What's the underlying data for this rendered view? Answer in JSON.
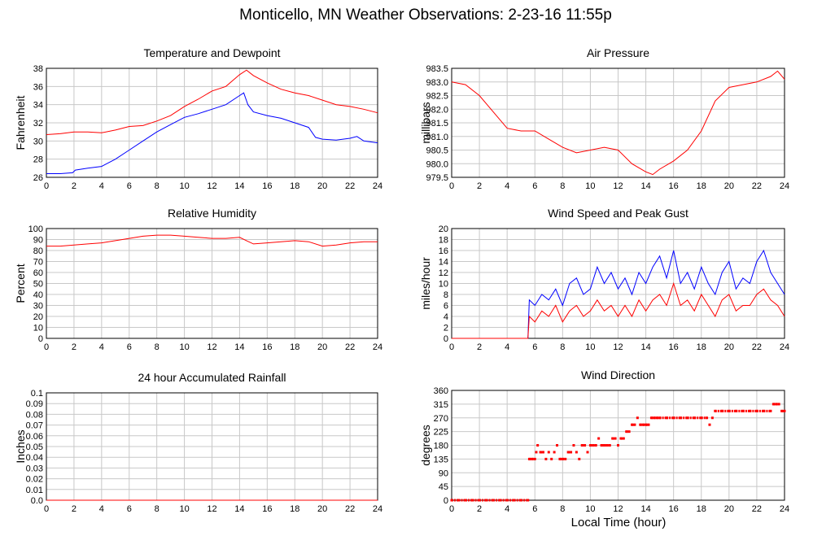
{
  "page": {
    "title": "Monticello, MN Weather Observations: 2-23-16 11:55p",
    "xaxis_label": "Local Time (hour)"
  },
  "colors": {
    "red": "#ff0000",
    "blue": "#0000ff",
    "grid": "#c8c8c8"
  },
  "chart_data": [
    {
      "id": "temp",
      "type": "line",
      "title": "Temperature and Dewpoint",
      "ylabel": "Fahrenheit",
      "xlim": [
        0,
        24
      ],
      "ylim": [
        26,
        38
      ],
      "yticks": [
        26,
        28,
        30,
        32,
        34,
        36,
        38
      ],
      "xticks": [
        0,
        2,
        4,
        6,
        8,
        10,
        12,
        14,
        16,
        18,
        20,
        22,
        24
      ],
      "grid": true,
      "series": [
        {
          "color": "#ff0000",
          "x": [
            0,
            1,
            2,
            3,
            4,
            5,
            6,
            7,
            8,
            9,
            10,
            11,
            12,
            13,
            14,
            14.5,
            15,
            16,
            17,
            18,
            19,
            20,
            21,
            22,
            23,
            24
          ],
          "y": [
            30.7,
            30.8,
            31.0,
            31.0,
            30.9,
            31.2,
            31.6,
            31.7,
            32.2,
            32.8,
            33.8,
            34.6,
            35.5,
            36.0,
            37.3,
            37.8,
            37.2,
            36.4,
            35.7,
            35.3,
            35.0,
            34.5,
            34.0,
            33.8,
            33.5,
            33.1
          ]
        },
        {
          "color": "#0000ff",
          "x": [
            0,
            1,
            1.9,
            2.1,
            3,
            4,
            5,
            6,
            7,
            8,
            9,
            10,
            11,
            12,
            13,
            14,
            14.3,
            14.6,
            15,
            16,
            17,
            18,
            19,
            19.5,
            20,
            21,
            22,
            22.5,
            23,
            24
          ],
          "y": [
            26.4,
            26.4,
            26.5,
            26.8,
            27.0,
            27.2,
            28.0,
            29.0,
            30.0,
            31.0,
            31.8,
            32.6,
            33.0,
            33.5,
            34.0,
            35.0,
            35.3,
            34.0,
            33.2,
            32.8,
            32.5,
            32.0,
            31.5,
            30.4,
            30.2,
            30.1,
            30.3,
            30.5,
            30.0,
            29.8
          ]
        }
      ]
    },
    {
      "id": "pressure",
      "type": "line",
      "title": "Air Pressure",
      "ylabel": "millibars",
      "xlim": [
        0,
        24
      ],
      "ylim": [
        979.5,
        983.5
      ],
      "yticks": [
        979.5,
        980.0,
        980.5,
        981.0,
        981.5,
        982.0,
        982.5,
        983.0,
        983.5
      ],
      "ytick_labels": [
        "979.5",
        "980.0",
        "980.5",
        "981.0",
        "981.5",
        "982.0",
        "982.5",
        "983.0",
        "983.5"
      ],
      "xticks": [
        0,
        2,
        4,
        6,
        8,
        10,
        12,
        14,
        16,
        18,
        20,
        22,
        24
      ],
      "grid": true,
      "series": [
        {
          "color": "#ff0000",
          "x": [
            0,
            1,
            2,
            3,
            4,
            5,
            6,
            7,
            8,
            9,
            10,
            11,
            12,
            13,
            14,
            14.5,
            15,
            16,
            17,
            18,
            19,
            20,
            21,
            22,
            23,
            23.5,
            24
          ],
          "y": [
            983.0,
            982.9,
            982.5,
            981.9,
            981.3,
            981.2,
            981.2,
            980.9,
            980.6,
            980.4,
            980.5,
            980.6,
            980.5,
            980.0,
            979.7,
            979.6,
            979.8,
            980.1,
            980.5,
            981.2,
            982.3,
            982.8,
            982.9,
            983.0,
            983.2,
            983.4,
            983.1
          ]
        }
      ]
    },
    {
      "id": "rh",
      "type": "line",
      "title": "Relative Humidity",
      "ylabel": "Percent",
      "xlim": [
        0,
        24
      ],
      "ylim": [
        0,
        100
      ],
      "yticks": [
        0,
        10,
        20,
        30,
        40,
        50,
        60,
        70,
        80,
        90,
        100
      ],
      "xticks": [
        0,
        2,
        4,
        6,
        8,
        10,
        12,
        14,
        16,
        18,
        20,
        22,
        24
      ],
      "grid": true,
      "series": [
        {
          "color": "#ff0000",
          "x": [
            0,
            1,
            2,
            3,
            4,
            5,
            6,
            7,
            8,
            9,
            10,
            11,
            12,
            13,
            14,
            14.5,
            15,
            16,
            17,
            18,
            19,
            20,
            21,
            22,
            23,
            24
          ],
          "y": [
            84,
            84,
            85,
            86,
            87,
            89,
            91,
            93,
            94,
            94,
            93,
            92,
            91,
            91,
            92,
            89,
            86,
            87,
            88,
            89,
            88,
            84,
            85,
            87,
            88,
            88
          ]
        }
      ]
    },
    {
      "id": "wind",
      "type": "line",
      "title": "Wind Speed and Peak Gust",
      "ylabel": "miles/hour",
      "xlim": [
        0,
        24
      ],
      "ylim": [
        0,
        20
      ],
      "yticks": [
        0,
        2,
        4,
        6,
        8,
        10,
        12,
        14,
        16,
        18,
        20
      ],
      "xticks": [
        0,
        2,
        4,
        6,
        8,
        10,
        12,
        14,
        16,
        18,
        20,
        22,
        24
      ],
      "grid": true,
      "series": [
        {
          "color": "#0000ff",
          "x": [
            0,
            5.5,
            5.6,
            6,
            6.5,
            7,
            7.5,
            8,
            8.5,
            9,
            9.5,
            10,
            10.5,
            11,
            11.5,
            12,
            12.5,
            13,
            13.5,
            14,
            14.5,
            15,
            15.5,
            16,
            16.5,
            17,
            17.5,
            18,
            18.5,
            19,
            19.5,
            20,
            20.5,
            21,
            21.5,
            22,
            22.5,
            23,
            23.5,
            24
          ],
          "y": [
            0,
            0,
            7,
            6,
            8,
            7,
            9,
            6,
            10,
            11,
            8,
            9,
            13,
            10,
            12,
            9,
            11,
            8,
            12,
            10,
            13,
            15,
            11,
            16,
            10,
            12,
            9,
            13,
            10,
            8,
            12,
            14,
            9,
            11,
            10,
            14,
            16,
            12,
            10,
            8
          ]
        },
        {
          "color": "#ff0000",
          "x": [
            0,
            5.5,
            5.6,
            6,
            6.5,
            7,
            7.5,
            8,
            8.5,
            9,
            9.5,
            10,
            10.5,
            11,
            11.5,
            12,
            12.5,
            13,
            13.5,
            14,
            14.5,
            15,
            15.5,
            16,
            16.5,
            17,
            17.5,
            18,
            18.5,
            19,
            19.5,
            20,
            20.5,
            21,
            21.5,
            22,
            22.5,
            23,
            23.5,
            24
          ],
          "y": [
            0,
            0,
            4,
            3,
            5,
            4,
            6,
            3,
            5,
            6,
            4,
            5,
            7,
            5,
            6,
            4,
            6,
            4,
            7,
            5,
            7,
            8,
            6,
            10,
            6,
            7,
            5,
            8,
            6,
            4,
            7,
            8,
            5,
            6,
            6,
            8,
            9,
            7,
            6,
            4
          ]
        }
      ]
    },
    {
      "id": "rain",
      "type": "line",
      "title": "24 hour Accumulated Rainfall",
      "ylabel": "Inches",
      "xlim": [
        0,
        24
      ],
      "ylim": [
        0,
        0.1
      ],
      "yticks": [
        0,
        0.01,
        0.02,
        0.03,
        0.04,
        0.05,
        0.06,
        0.07,
        0.08,
        0.09,
        0.1
      ],
      "ytick_labels": [
        "0.0",
        "0.01",
        "0.02",
        "0.03",
        "0.04",
        "0.05",
        "0.06",
        "0.07",
        "0.08",
        "0.09",
        "0.1"
      ],
      "xticks": [
        0,
        2,
        4,
        6,
        8,
        10,
        12,
        14,
        16,
        18,
        20,
        22,
        24
      ],
      "grid": true,
      "series": [
        {
          "color": "#ff0000",
          "x": [
            0,
            24
          ],
          "y": [
            0,
            0
          ]
        }
      ]
    },
    {
      "id": "winddir",
      "type": "scatter",
      "title": "Wind Direction",
      "ylabel": "degrees",
      "xlim": [
        0,
        24
      ],
      "ylim": [
        0,
        360
      ],
      "yticks": [
        0,
        45,
        90,
        135,
        180,
        225,
        270,
        315,
        360
      ],
      "xticks": [
        0,
        2,
        4,
        6,
        8,
        10,
        12,
        14,
        16,
        18,
        20,
        22,
        24
      ],
      "grid": true,
      "series": [
        {
          "color": "#ff0000",
          "x": [
            0,
            0.5,
            1,
            1.5,
            2,
            2.5,
            3,
            3.5,
            4,
            4.5,
            5,
            5.5,
            5.6,
            5.8,
            6.0,
            6.1,
            6.2,
            6.4,
            6.6,
            6.8,
            7.0,
            7.2,
            7.4,
            7.6,
            7.8,
            8.0,
            8.2,
            8.4,
            8.6,
            8.8,
            9.0,
            9.2,
            9.4,
            9.6,
            9.8,
            10.0,
            10.2,
            10.4,
            10.6,
            10.8,
            11.0,
            11.2,
            11.4,
            11.6,
            11.8,
            12.0,
            12.2,
            12.4,
            12.6,
            12.8,
            13.0,
            13.2,
            13.4,
            13.6,
            13.8,
            14.0,
            14.2,
            14.4,
            14.6,
            14.8,
            15.0,
            15.5,
            16.0,
            16.5,
            17.0,
            17.5,
            18.0,
            18.4,
            18.6,
            18.8,
            19.0,
            19.5,
            20.0,
            20.5,
            21.0,
            21.5,
            22.0,
            22.5,
            23.0,
            23.2,
            23.4,
            23.6,
            23.8,
            24.0
          ],
          "y": [
            0,
            0,
            0,
            0,
            0,
            0,
            0,
            0,
            0,
            0,
            0,
            0,
            135,
            135,
            135,
            157.5,
            180,
            157.5,
            157.5,
            135,
            157.5,
            135,
            157.5,
            180,
            135,
            135,
            135,
            157.5,
            157.5,
            180,
            157.5,
            135,
            180,
            180,
            157.5,
            180,
            180,
            180,
            202.5,
            180,
            180,
            180,
            180,
            202.5,
            202.5,
            180,
            202.5,
            202.5,
            225,
            225,
            247.5,
            247.5,
            270,
            247.5,
            247.5,
            247.5,
            247.5,
            270,
            270,
            270,
            270,
            270,
            270,
            270,
            270,
            270,
            270,
            270,
            247.5,
            270,
            292.5,
            292.5,
            292.5,
            292.5,
            292.5,
            292.5,
            292.5,
            292.5,
            292.5,
            315,
            315,
            315,
            292.5,
            292.5
          ]
        }
      ]
    }
  ]
}
